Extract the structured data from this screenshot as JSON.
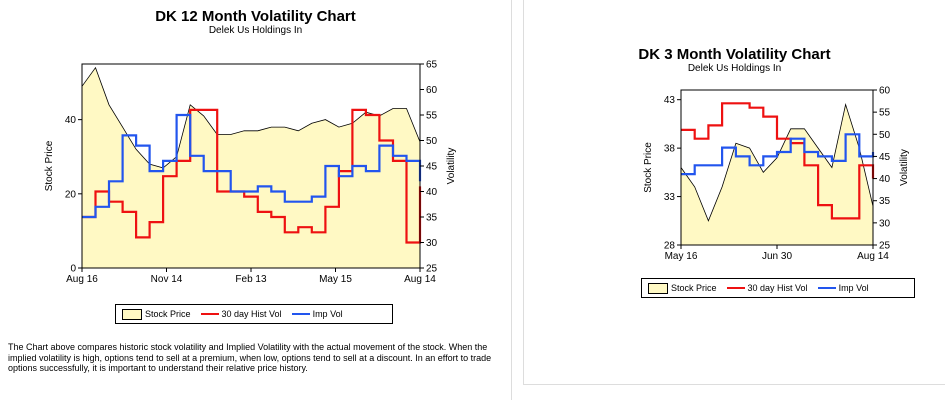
{
  "charts": [
    {
      "title": "DK 12 Month Volatility Chart",
      "subtitle": "Delek Us Holdings In",
      "ylabel": "Stock Price",
      "y2label": "Volatility",
      "x_ticks": [
        "Aug 16",
        "Nov 14",
        "Feb 13",
        "May 15",
        "Aug 14"
      ],
      "y_ticks": [
        "0",
        "20",
        "40"
      ],
      "y2_ticks": [
        "25",
        "30",
        "35",
        "40",
        "45",
        "50",
        "55",
        "60",
        "65"
      ],
      "legend": [
        "Stock Price",
        "30 day Hist Vol",
        "Imp Vol"
      ]
    },
    {
      "title": "DK 3 Month Volatility Chart",
      "subtitle": "Delek Us Holdings In",
      "ylabel": "Stock Price",
      "y2label": "Volatility",
      "x_ticks": [
        "May 16",
        "Jun 30",
        "Aug 14"
      ],
      "y_ticks": [
        "28",
        "33",
        "38",
        "43"
      ],
      "y2_ticks": [
        "25",
        "30",
        "35",
        "40",
        "45",
        "50",
        "55",
        "60"
      ],
      "legend": [
        "Stock Price",
        "30 day Hist Vol",
        "Imp Vol"
      ]
    }
  ],
  "note": "The Chart above compares historic stock volatility and Implied Volatility with the actual movement of the stock. When the implied volatility is high, options tend to sell at a premium, when low, options tend to sell at a discount. In an effort to trade options successfully, it is important to understand their relative price history.",
  "colors": {
    "price_fill": "#fff9c4",
    "hist_vol": "#ee1111",
    "imp_vol": "#2255ee"
  },
  "chart_data": [
    {
      "type": "line",
      "title": "DK 12 Month Volatility Chart",
      "x": [
        "Aug 16",
        "Sep 2",
        "Sep 16",
        "Oct 1",
        "Oct 16",
        "Nov 1",
        "Nov 14",
        "Nov 20",
        "Dec 1",
        "Dec 16",
        "Jan 1",
        "Jan 16",
        "Feb 1",
        "Feb 13",
        "Mar 1",
        "Mar 16",
        "Apr 1",
        "Apr 16",
        "May 1",
        "May 15",
        "Jun 1",
        "Jun 16",
        "Jul 1",
        "Jul 16",
        "Aug 1",
        "Aug 14"
      ],
      "xlim": [
        "Aug 16",
        "Aug 14"
      ],
      "ylim": [
        0,
        55
      ],
      "y2lim": [
        25,
        65
      ],
      "series": [
        {
          "name": "Stock Price",
          "axis": "left",
          "values": [
            49,
            54,
            44,
            38,
            32,
            28,
            27,
            30,
            44,
            41,
            36,
            36,
            37,
            37,
            38,
            38,
            37,
            39,
            40,
            38,
            39,
            42,
            41,
            43,
            43,
            34
          ]
        },
        {
          "name": "30 day Hist Vol",
          "axis": "right",
          "values": [
            35,
            40,
            38,
            36,
            31,
            34,
            43,
            46,
            56,
            56,
            40,
            40,
            39,
            36,
            35,
            32,
            33,
            32,
            37,
            44,
            56,
            55,
            50,
            46,
            30,
            41
          ]
        },
        {
          "name": "Imp Vol",
          "axis": "right",
          "values": [
            35,
            37,
            42,
            51,
            49,
            44,
            46,
            55,
            47,
            44,
            44,
            40,
            40,
            41,
            40,
            38,
            38,
            39,
            45,
            43,
            45,
            44,
            49,
            47,
            46,
            42
          ]
        }
      ]
    },
    {
      "type": "line",
      "title": "DK 3 Month Volatility Chart",
      "x": [
        "May 16",
        "May 23",
        "May 30",
        "Jun 6",
        "Jun 13",
        "Jun 20",
        "Jun 27",
        "Jun 30",
        "Jul 7",
        "Jul 14",
        "Jul 21",
        "Jul 28",
        "Aug 4",
        "Aug 11",
        "Aug 14"
      ],
      "xlim": [
        "May 16",
        "Aug 14"
      ],
      "ylim": [
        28,
        44
      ],
      "y2lim": [
        25,
        60
      ],
      "series": [
        {
          "name": "Stock Price",
          "axis": "left",
          "values": [
            36,
            34,
            30.5,
            34,
            38.5,
            38,
            35.5,
            37,
            40,
            40,
            38,
            36,
            42.5,
            38,
            32
          ]
        },
        {
          "name": "30 day Hist Vol",
          "axis": "right",
          "values": [
            51,
            49,
            52,
            57,
            57,
            56,
            54,
            49,
            48,
            43,
            34,
            31,
            31,
            43,
            40
          ]
        },
        {
          "name": "Imp Vol",
          "axis": "right",
          "values": [
            41,
            43,
            43,
            47,
            45,
            43,
            45,
            46,
            49,
            46,
            45,
            44,
            50,
            45,
            46
          ]
        }
      ]
    }
  ]
}
